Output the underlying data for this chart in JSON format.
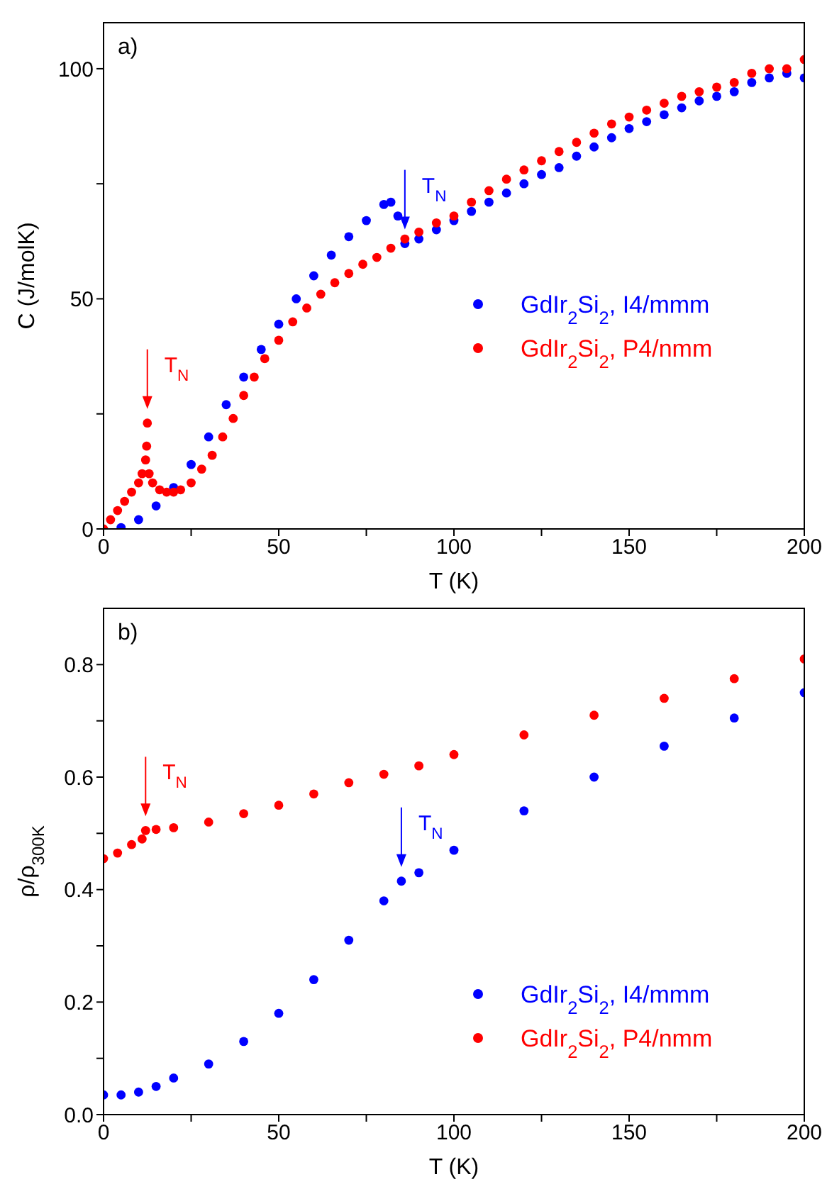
{
  "chart_data": [
    {
      "type": "scatter",
      "title": "a)",
      "xlabel": "T (K)",
      "ylabel": "C (J/molK)",
      "marker": "circle",
      "legend": "right",
      "xlim": [
        0,
        200
      ],
      "ylim": [
        0,
        110
      ],
      "xticks": [
        0,
        {
          "value": 25,
          "label": null
        },
        50,
        {
          "value": 75,
          "label": null
        },
        100,
        {
          "value": 125,
          "label": null
        },
        150,
        {
          "value": 175,
          "label": null
        },
        200
      ],
      "yticks": [
        0,
        {
          "value": 25,
          "label": null
        },
        50,
        {
          "value": 75,
          "label": null
        },
        100
      ],
      "annotations": [
        {
          "text": "T$_{N}$",
          "x": 86,
          "y": 62
        },
        {
          "text": "T$_{N}$",
          "x": 12.5,
          "y": 23
        }
      ],
      "series": [
        {
          "name": "GdIr$_{2}$Si$_{2}$, I4/mmm",
          "color": "#0000ff",
          "x": [
            5,
            10,
            15,
            20,
            25,
            30,
            35,
            40,
            45,
            50,
            55,
            60,
            65,
            70,
            75,
            80,
            82,
            84,
            86,
            90,
            95,
            100,
            105,
            110,
            115,
            120,
            125,
            130,
            135,
            140,
            145,
            150,
            155,
            160,
            165,
            170,
            175,
            180,
            185,
            190,
            195,
            200
          ],
          "values": [
            0.3,
            2,
            5,
            9,
            14,
            20,
            27,
            33,
            39,
            44.5,
            50,
            55,
            59.5,
            63.5,
            67,
            70.5,
            71,
            68,
            62,
            63,
            65,
            67,
            69,
            71,
            73,
            75,
            77,
            78.5,
            81,
            83,
            85,
            87,
            88.5,
            90,
            91.5,
            93,
            94,
            95,
            97,
            98,
            99,
            98
          ]
        },
        {
          "name": "GdIr$_{2}$Si$_{2}$, P4/nmm",
          "color": "#ff0000",
          "x": [
            0,
            2,
            4,
            6,
            8,
            10,
            11,
            12,
            12.3,
            12.5,
            13,
            14,
            16,
            18,
            20,
            22,
            25,
            28,
            31,
            34,
            37,
            40,
            43,
            46,
            50,
            54,
            58,
            62,
            66,
            70,
            74,
            78,
            82,
            86,
            90,
            95,
            100,
            105,
            110,
            115,
            120,
            125,
            130,
            135,
            140,
            145,
            150,
            155,
            160,
            165,
            170,
            175,
            180,
            185,
            190,
            195,
            200
          ],
          "values": [
            0,
            2,
            4,
            6,
            8,
            10,
            12,
            15,
            18,
            23,
            12,
            10,
            8.5,
            8,
            8,
            8.5,
            10,
            13,
            16,
            20,
            24,
            29,
            33,
            37,
            41,
            45,
            48,
            51,
            53.5,
            55.5,
            57.5,
            59,
            61,
            63,
            64.5,
            66.5,
            68,
            71,
            73.5,
            76,
            78,
            80,
            82,
            84,
            86,
            88,
            89.5,
            91,
            92.5,
            94,
            95,
            96,
            97,
            99,
            100,
            100,
            102
          ]
        }
      ]
    },
    {
      "type": "scatter",
      "title": "b)",
      "xlabel": "T (K)",
      "ylabel": "ρ/ρ$_{300K}$",
      "marker": "circle",
      "legend": "bottom right",
      "xlim": [
        0,
        200
      ],
      "ylim": [
        0,
        0.9
      ],
      "xticks": [
        0,
        {
          "value": 25,
          "label": null
        },
        50,
        {
          "value": 75,
          "label": null
        },
        100,
        {
          "value": 125,
          "label": null
        },
        150,
        {
          "value": 175,
          "label": null
        },
        200
      ],
      "yticks": [
        {
          "value": 0,
          "label": "0.0"
        },
        {
          "value": 0.1,
          "label": null
        },
        0.2,
        {
          "value": 0.3,
          "label": null
        },
        0.4,
        {
          "value": 0.5,
          "label": null
        },
        0.6,
        {
          "value": 0.7,
          "label": null
        },
        0.8
      ],
      "annotations": [
        {
          "text": "T$_{N}$",
          "x": 12,
          "y": 0.505
        },
        {
          "text": "T$_{N}$",
          "x": 85,
          "y": 0.415
        }
      ],
      "series": [
        {
          "name": "GdIr$_{2}$Si$_{2}$, I4/mmm",
          "color": "#0000ff",
          "x": [
            0,
            5,
            10,
            15,
            20,
            30,
            40,
            50,
            60,
            70,
            80,
            85,
            90,
            100,
            120,
            140,
            160,
            180,
            200
          ],
          "values": [
            0.035,
            0.035,
            0.04,
            0.05,
            0.065,
            0.09,
            0.13,
            0.18,
            0.24,
            0.31,
            0.38,
            0.415,
            0.43,
            0.47,
            0.54,
            0.6,
            0.655,
            0.705,
            0.75
          ]
        },
        {
          "name": "GdIr$_{2}$Si$_{2}$, P4/nmm",
          "color": "#ff0000",
          "x": [
            0,
            4,
            8,
            11,
            12,
            15,
            20,
            30,
            40,
            50,
            60,
            70,
            80,
            90,
            100,
            120,
            140,
            160,
            180,
            200
          ],
          "values": [
            0.455,
            0.465,
            0.48,
            0.49,
            0.505,
            0.507,
            0.51,
            0.52,
            0.535,
            0.55,
            0.57,
            0.59,
            0.605,
            0.62,
            0.64,
            0.675,
            0.71,
            0.74,
            0.775,
            0.81
          ]
        }
      ]
    }
  ]
}
